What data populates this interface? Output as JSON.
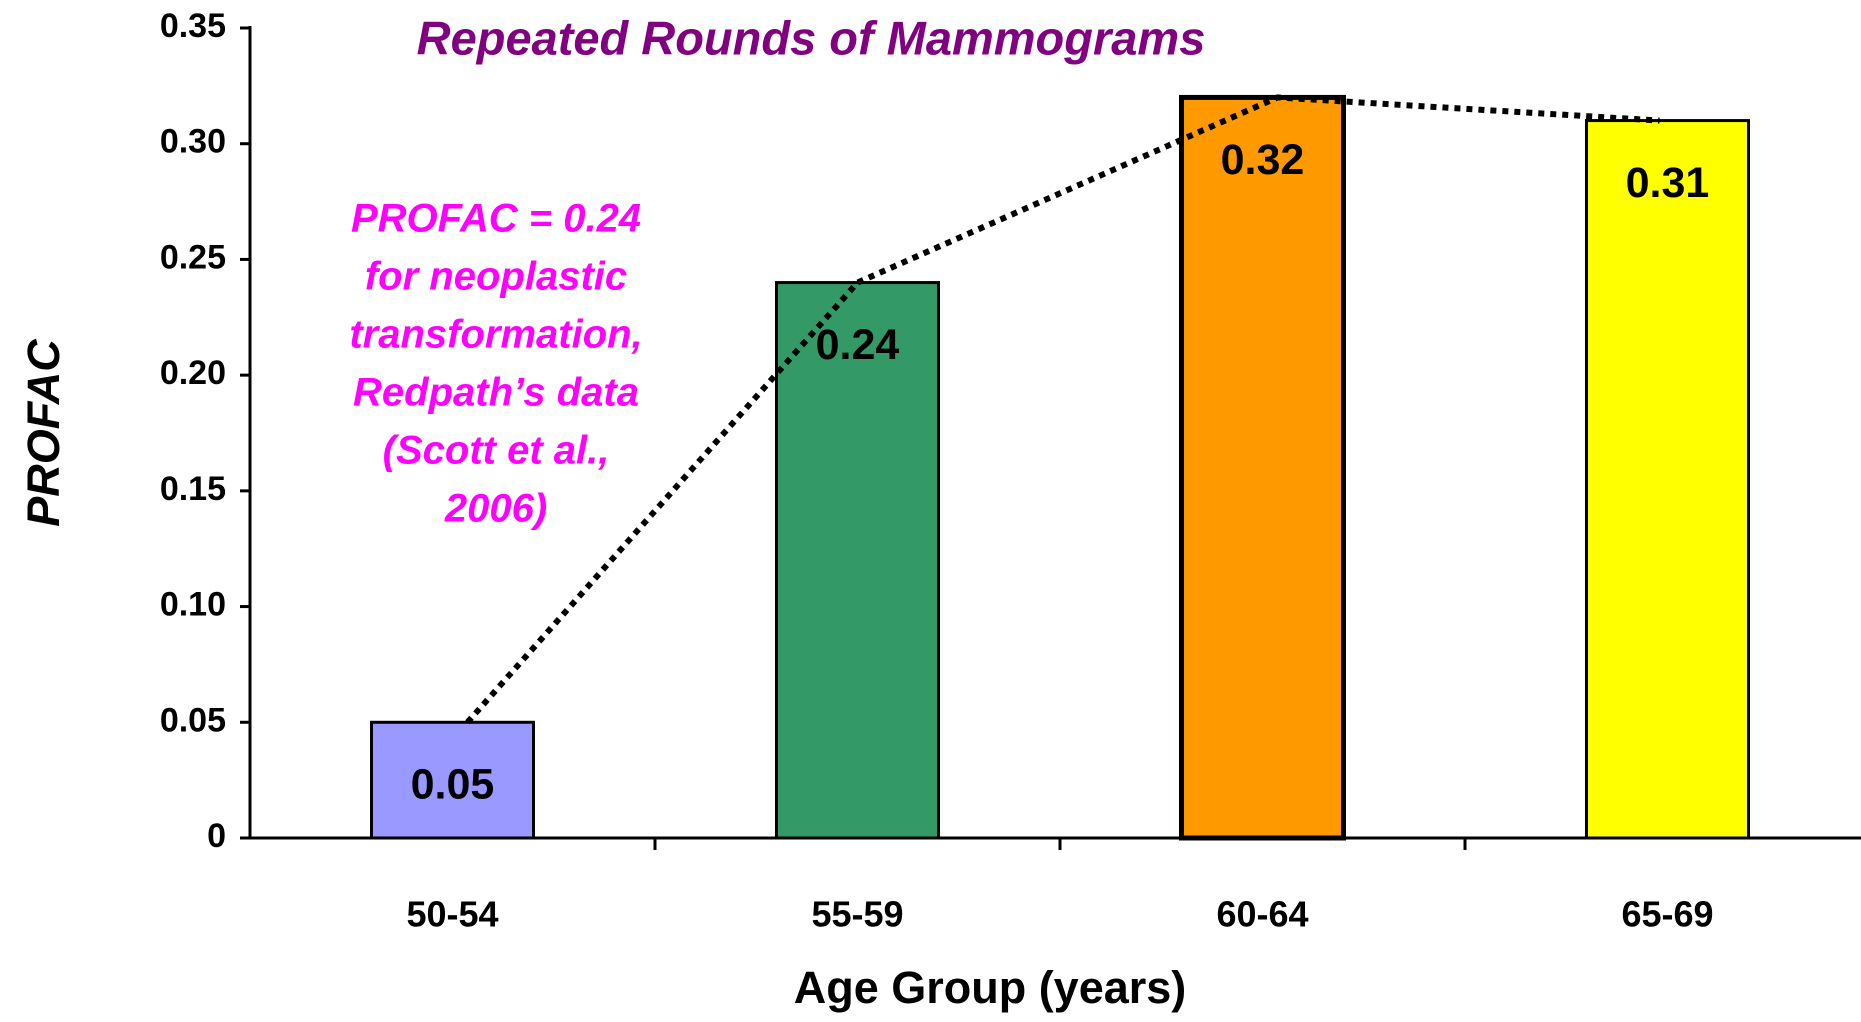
{
  "chart_data": {
    "type": "bar",
    "title": "Repeated Rounds of Mammograms",
    "xlabel": "Age Group (years)",
    "ylabel": "PROFAC",
    "categories": [
      "50-54",
      "55-59",
      "60-64",
      "65-69"
    ],
    "values": [
      0.05,
      0.24,
      0.32,
      0.31
    ],
    "colors": [
      "#9999ff",
      "#339966",
      "#ff9900",
      "#ffff00"
    ],
    "ylim": [
      0,
      0.35
    ],
    "yticks": [
      0,
      0.05,
      {
        "value": 0.1,
        "label": "0.10"
      },
      0.15,
      {
        "value": 0.2,
        "label": "0.20"
      },
      0.25,
      {
        "value": 0.3,
        "label": "0.30"
      },
      0.35
    ],
    "trend_line": "dotted",
    "annotation": [
      "PROFAC = 0.24",
      "for neoplastic",
      "transformation,",
      "Redpath’s data",
      "(Scott et al.,",
      "2006)"
    ]
  }
}
